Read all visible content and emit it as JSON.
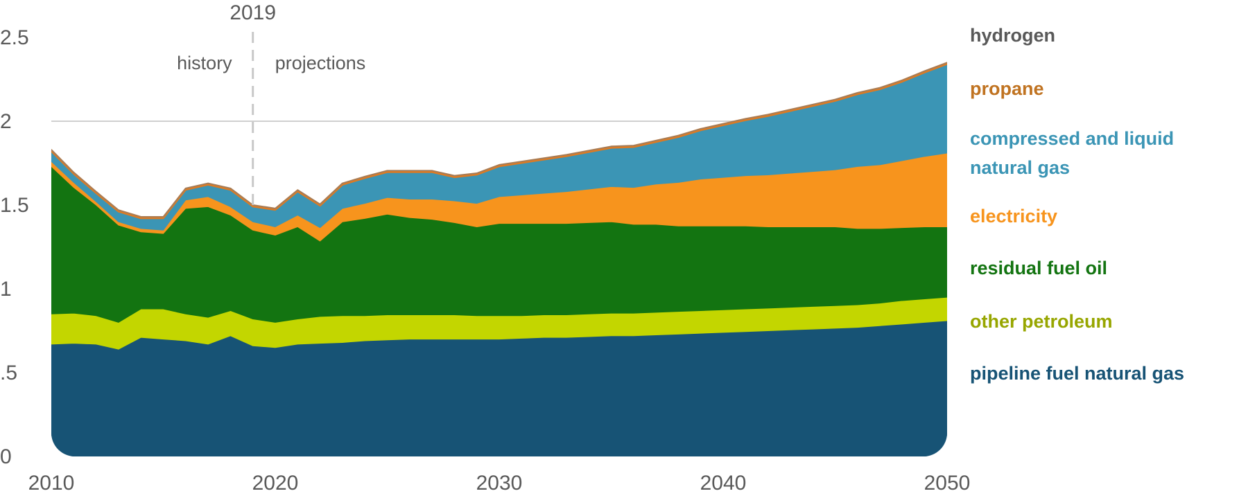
{
  "chart_data": {
    "type": "area",
    "stacked": true,
    "title": "",
    "xlabel": "",
    "ylabel": "",
    "xlim": [
      2010,
      2050
    ],
    "ylim": [
      0,
      2.5
    ],
    "x_ticks": [
      "2010",
      "2020",
      "2030",
      "2040",
      "2050"
    ],
    "y_ticks": [
      {
        "value": 0,
        "label": "0"
      },
      {
        "value": 0.5,
        "label": ".5"
      },
      {
        "value": 1,
        "label": "1"
      },
      {
        "value": 1.5,
        "label": "1.5"
      },
      {
        "value": 2,
        "label": "2"
      },
      {
        "value": 2.5,
        "label": "2.5"
      }
    ],
    "gridlines": [
      2
    ],
    "annotations": {
      "divider_year": 2019,
      "divider_label": "2019",
      "history_label": "history",
      "projections_label": "projections"
    },
    "x": [
      2010,
      2011,
      2012,
      2013,
      2014,
      2015,
      2016,
      2017,
      2018,
      2019,
      2020,
      2021,
      2022,
      2023,
      2024,
      2025,
      2026,
      2027,
      2028,
      2029,
      2030,
      2031,
      2032,
      2033,
      2034,
      2035,
      2036,
      2037,
      2038,
      2039,
      2040,
      2041,
      2042,
      2043,
      2044,
      2045,
      2046,
      2047,
      2048,
      2049,
      2050
    ],
    "series": [
      {
        "name": "pipeline fuel natural gas",
        "color": "#175375",
        "label_color": "#175375",
        "values": [
          0.67,
          0.675,
          0.67,
          0.64,
          0.71,
          0.7,
          0.69,
          0.67,
          0.72,
          0.66,
          0.65,
          0.67,
          0.675,
          0.68,
          0.69,
          0.695,
          0.7,
          0.7,
          0.7,
          0.7,
          0.7,
          0.705,
          0.71,
          0.71,
          0.715,
          0.72,
          0.72,
          0.725,
          0.73,
          0.735,
          0.74,
          0.745,
          0.75,
          0.755,
          0.76,
          0.765,
          0.77,
          0.78,
          0.79,
          0.8,
          0.81
        ]
      },
      {
        "name": "other petroleum",
        "color": "#c3d600",
        "label_color": "#97a600",
        "values": [
          0.18,
          0.18,
          0.17,
          0.16,
          0.17,
          0.18,
          0.16,
          0.16,
          0.15,
          0.16,
          0.15,
          0.15,
          0.16,
          0.16,
          0.15,
          0.15,
          0.145,
          0.145,
          0.145,
          0.14,
          0.14,
          0.135,
          0.135,
          0.135,
          0.135,
          0.135,
          0.135,
          0.135,
          0.135,
          0.135,
          0.135,
          0.135,
          0.135,
          0.135,
          0.135,
          0.135,
          0.135,
          0.135,
          0.14,
          0.14,
          0.14
        ]
      },
      {
        "name": "residual fuel oil",
        "color": "#137411",
        "label_color": "#137411",
        "values": [
          0.88,
          0.75,
          0.66,
          0.58,
          0.46,
          0.45,
          0.63,
          0.66,
          0.57,
          0.53,
          0.52,
          0.55,
          0.45,
          0.56,
          0.58,
          0.6,
          0.58,
          0.57,
          0.55,
          0.53,
          0.55,
          0.55,
          0.545,
          0.545,
          0.545,
          0.545,
          0.53,
          0.525,
          0.51,
          0.505,
          0.5,
          0.495,
          0.485,
          0.48,
          0.475,
          0.47,
          0.455,
          0.445,
          0.435,
          0.43,
          0.42
        ]
      },
      {
        "name": "electricity",
        "color": "#f7941d",
        "label_color": "#f7941d",
        "values": [
          0.03,
          0.03,
          0.02,
          0.02,
          0.02,
          0.02,
          0.05,
          0.06,
          0.05,
          0.05,
          0.05,
          0.07,
          0.08,
          0.08,
          0.09,
          0.1,
          0.11,
          0.12,
          0.13,
          0.14,
          0.16,
          0.17,
          0.18,
          0.19,
          0.2,
          0.21,
          0.22,
          0.24,
          0.26,
          0.28,
          0.29,
          0.3,
          0.31,
          0.32,
          0.33,
          0.34,
          0.37,
          0.38,
          0.4,
          0.42,
          0.44
        ]
      },
      {
        "name": "compressed and liquid natural gas",
        "color": "#3b95b5",
        "label_color": "#3b95b5",
        "values": [
          0.06,
          0.05,
          0.05,
          0.06,
          0.06,
          0.07,
          0.06,
          0.07,
          0.1,
          0.09,
          0.1,
          0.14,
          0.13,
          0.14,
          0.15,
          0.15,
          0.16,
          0.16,
          0.14,
          0.17,
          0.18,
          0.19,
          0.2,
          0.21,
          0.22,
          0.23,
          0.24,
          0.25,
          0.27,
          0.29,
          0.31,
          0.33,
          0.35,
          0.37,
          0.39,
          0.41,
          0.43,
          0.45,
          0.47,
          0.5,
          0.53
        ]
      },
      {
        "name": "propane",
        "color": "#d97b27",
        "label_color": "#c07321",
        "values": [
          0.01,
          0.01,
          0.01,
          0.01,
          0.01,
          0.01,
          0.01,
          0.01,
          0.01,
          0.01,
          0.01,
          0.01,
          0.01,
          0.01,
          0.01,
          0.01,
          0.01,
          0.01,
          0.01,
          0.01,
          0.01,
          0.01,
          0.01,
          0.01,
          0.01,
          0.01,
          0.01,
          0.01,
          0.01,
          0.01,
          0.01,
          0.01,
          0.01,
          0.01,
          0.01,
          0.01,
          0.01,
          0.01,
          0.01,
          0.01,
          0.01
        ]
      },
      {
        "name": "hydrogen",
        "color": "#7f7f7f",
        "label_color": "#595959",
        "values": [
          0,
          0,
          0,
          0,
          0,
          0,
          0,
          0,
          0,
          0,
          0,
          0,
          0,
          0,
          0,
          0,
          0,
          0,
          0,
          0,
          0,
          0,
          0,
          0,
          0,
          0,
          0,
          0,
          0,
          0,
          0,
          0,
          0,
          0,
          0,
          0,
          0,
          0,
          0,
          0,
          0
        ]
      }
    ],
    "legend_placement": "right"
  }
}
